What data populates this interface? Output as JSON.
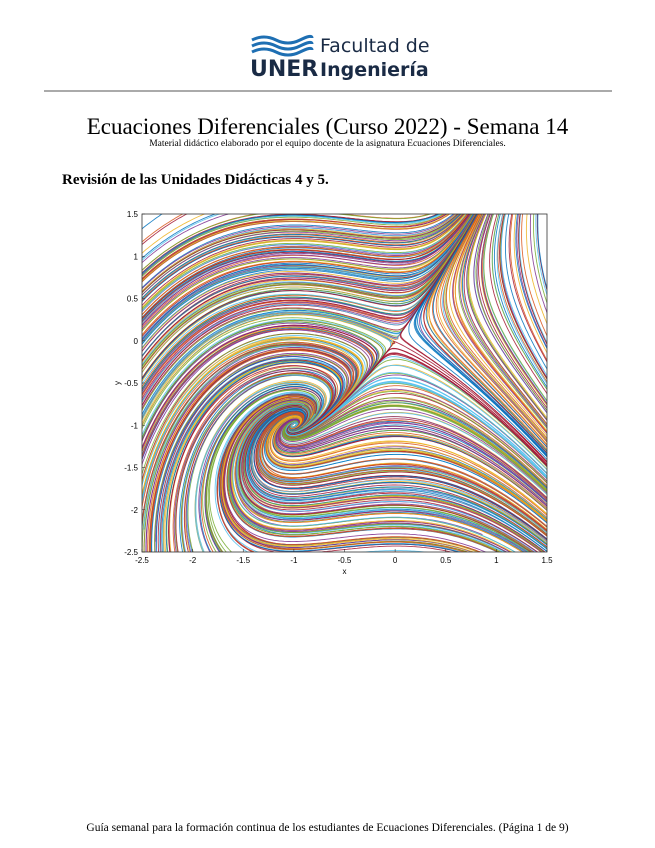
{
  "header": {
    "logo_line1": "Facultad de",
    "logo_acronym": "UNER",
    "logo_line2": "Ingeniería"
  },
  "title": "Ecuaciones Diferenciales (Curso 2022) - Semana 14",
  "subtitle": "Material didáctico elaborado por el equipo docente de la asignatura Ecuaciones Diferenciales.",
  "section_heading": "Revisión de las Unidades Didácticas 4 y 5.",
  "figure": {
    "xlabel": "x",
    "ylabel": "y",
    "xlim": [
      -2.5,
      1.5
    ],
    "ylim": [
      -2.5,
      1.5
    ],
    "xticks": [
      -2.5,
      -2,
      -1.5,
      -1,
      -0.5,
      0,
      0.5,
      1,
      1.5
    ],
    "yticks": [
      -2.5,
      -2,
      -1.5,
      -1,
      -0.5,
      0,
      0.5,
      1,
      1.5
    ]
  },
  "footer": "Guía semanal para la formación continua de los estudiantes de Ecuaciones Diferenciales. (Página 1 de 9)"
}
